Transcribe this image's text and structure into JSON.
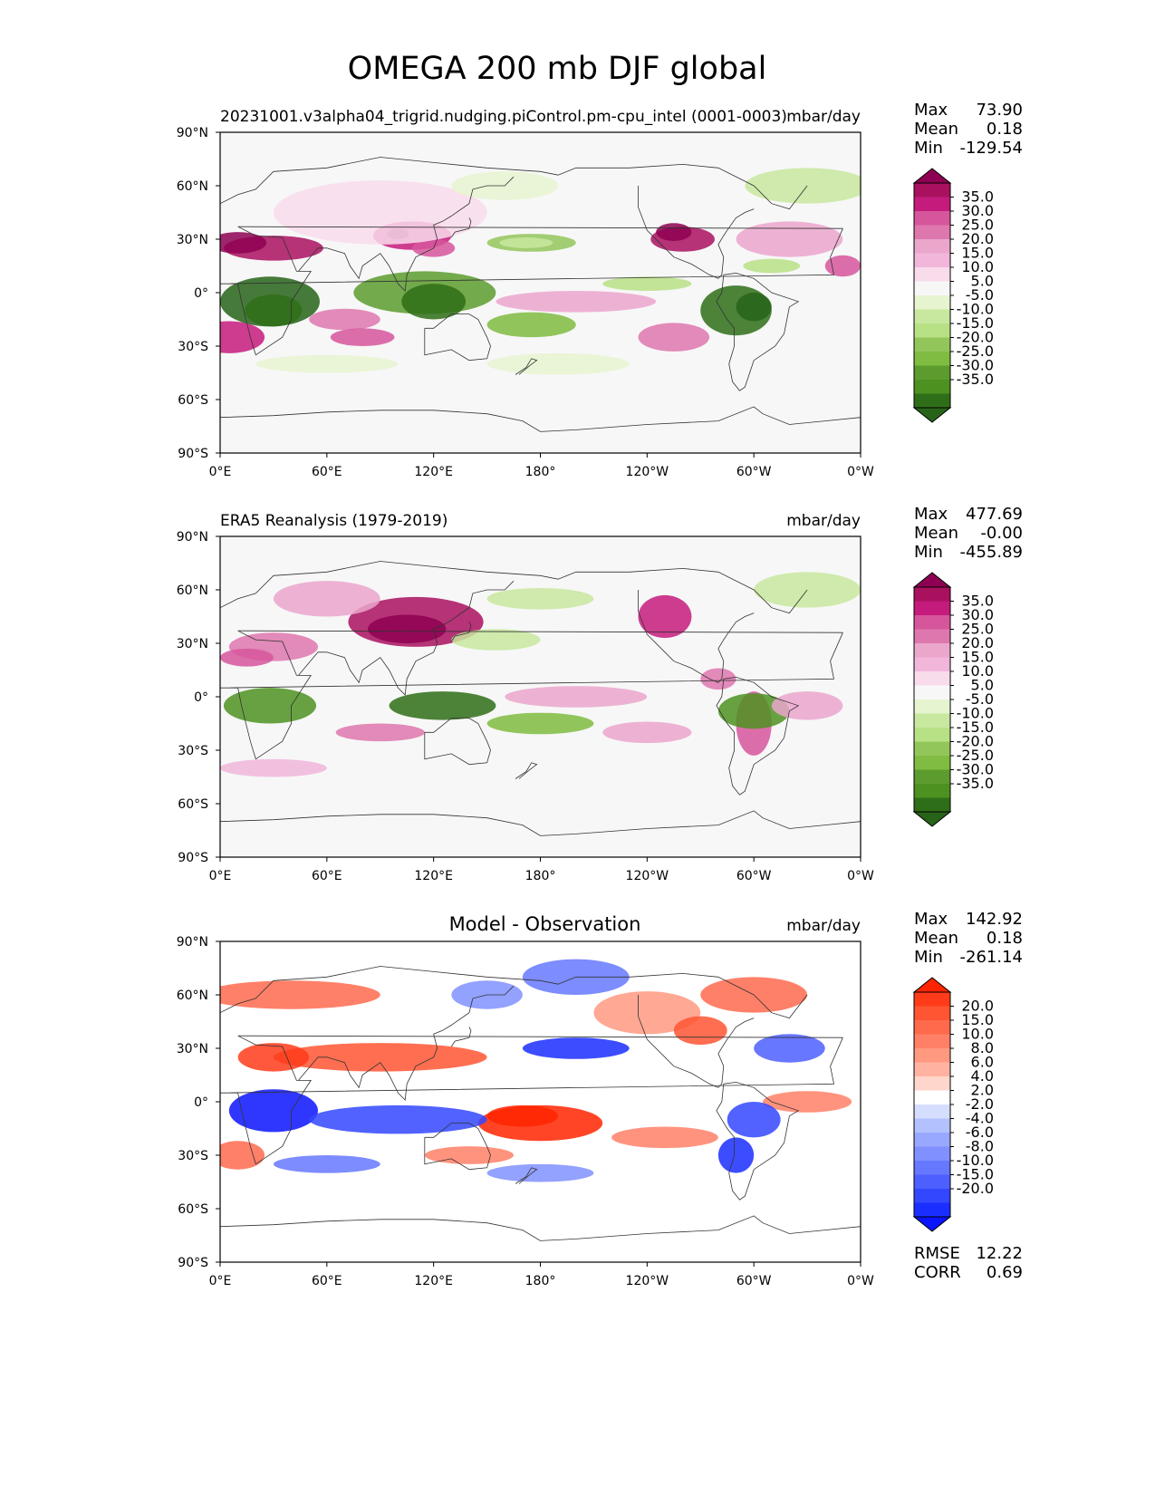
{
  "figure": {
    "title": "OMEGA 200 mb DJF global"
  },
  "chart_data": [
    {
      "type": "heatmap",
      "title_left": "20231001.v3alpha04_trigrid.nudging.piControl.pm-cpu_intel (0001-0003)",
      "units": "mbar/day",
      "projection": "global lat-lon map",
      "x_ticks": [
        "0°E",
        "60°E",
        "120°E",
        "180°",
        "120°W",
        "60°W",
        "0°W"
      ],
      "y_ticks": [
        "90°N",
        "60°N",
        "30°N",
        "0°",
        "30°S",
        "60°S",
        "90°S"
      ],
      "xlim": [
        0,
        360
      ],
      "ylim": [
        -90,
        90
      ],
      "stats": {
        "max_label": "Max",
        "max": "73.90",
        "mean_label": "Mean",
        "mean": "0.18",
        "min_label": "Min",
        "min": "-129.54"
      },
      "colorbar": {
        "colormap": "PiYG_r",
        "levels": [
          "35.0",
          "30.0",
          "25.0",
          "20.0",
          "15.0",
          "10.0",
          "5.0",
          "-5.0",
          "-10.0",
          "-15.0",
          "-20.0",
          "-25.0",
          "-30.0",
          "-35.0"
        ],
        "colors": [
          "#8e0152",
          "#a9115f",
          "#c51b7d",
          "#d6569c",
          "#de77ae",
          "#eba6cc",
          "#f1b6da",
          "#f9dcec",
          "#f7f7f7",
          "#e6f5d0",
          "#c8e89f",
          "#b8e186",
          "#93c65a",
          "#7fbc41",
          "#5c9c2e",
          "#4d9221",
          "#2f6e18",
          "#276419"
        ]
      }
    },
    {
      "type": "heatmap",
      "title_left": "ERA5 Reanalysis (1979-2019)",
      "units": "mbar/day",
      "x_ticks": [
        "0°E",
        "60°E",
        "120°E",
        "180°",
        "120°W",
        "60°W",
        "0°W"
      ],
      "y_ticks": [
        "90°N",
        "60°N",
        "30°N",
        "0°",
        "30°S",
        "60°S",
        "90°S"
      ],
      "xlim": [
        0,
        360
      ],
      "ylim": [
        -90,
        90
      ],
      "stats": {
        "max_label": "Max",
        "max": "477.69",
        "mean_label": "Mean",
        "mean": "-0.00",
        "min_label": "Min",
        "min": "-455.89"
      },
      "colorbar": {
        "colormap": "PiYG_r",
        "levels": [
          "35.0",
          "30.0",
          "25.0",
          "20.0",
          "15.0",
          "10.0",
          "5.0",
          "-5.0",
          "-10.0",
          "-15.0",
          "-20.0",
          "-25.0",
          "-30.0",
          "-35.0"
        ]
      }
    },
    {
      "type": "heatmap",
      "title_center": "Model - Observation",
      "units": "mbar/day",
      "x_ticks": [
        "0°E",
        "60°E",
        "120°E",
        "180°",
        "120°W",
        "60°W",
        "0°W"
      ],
      "y_ticks": [
        "90°N",
        "60°N",
        "30°N",
        "0°",
        "30°S",
        "60°S",
        "90°S"
      ],
      "xlim": [
        0,
        360
      ],
      "ylim": [
        -90,
        90
      ],
      "stats": {
        "max_label": "Max",
        "max": "142.92",
        "mean_label": "Mean",
        "mean": "0.18",
        "min_label": "Min",
        "min": "-261.14"
      },
      "metrics": {
        "rmse_label": "RMSE",
        "rmse": "12.22",
        "corr_label": "CORR",
        "corr": "0.69"
      },
      "colorbar": {
        "colormap": "bwr",
        "levels": [
          "20.0",
          "15.0",
          "10.0",
          "8.0",
          "6.0",
          "4.0",
          "2.0",
          "-2.0",
          "-4.0",
          "-6.0",
          "-8.0",
          "-10.0",
          "-15.0",
          "-20.0"
        ],
        "colors": [
          "#ff2400",
          "#ff3b1a",
          "#ff5533",
          "#ff6a4d",
          "#ff8066",
          "#ff9980",
          "#ffb3a0",
          "#ffd6cc",
          "#ffffff",
          "#d6deff",
          "#b3c2ff",
          "#99a8ff",
          "#8090ff",
          "#6678ff",
          "#4d5fff",
          "#3347ff",
          "#1a2eff",
          "#0a14ff"
        ]
      }
    }
  ]
}
